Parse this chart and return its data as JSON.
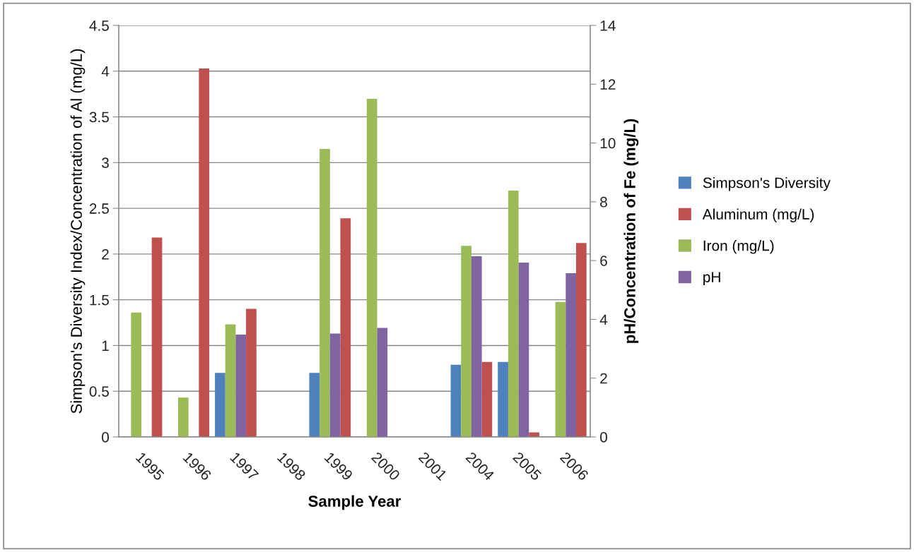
{
  "chart_data": {
    "type": "bar",
    "xlabel": "Sample Year",
    "ylabel": "Simpson's Diversity Index/Concentration of Al (mg/L)",
    "y2label": "pH/Concentration of Fe (mg/L)",
    "categories": [
      "1995",
      "1996",
      "1997",
      "1998",
      "1999",
      "2000",
      "2001",
      "2004",
      "2005",
      "2006"
    ],
    "series": [
      {
        "name": "Simpson's Diversity",
        "color": "#4f81bd",
        "values": [
          null,
          null,
          0.7,
          null,
          0.7,
          null,
          null,
          0.79,
          0.82,
          null
        ]
      },
      {
        "name": "Aluminum (mg/L)",
        "color": "#c0504d",
        "values": [
          2.18,
          4.03,
          1.4,
          null,
          2.39,
          null,
          null,
          0.82,
          0.05,
          2.12
        ]
      },
      {
        "name": "Iron (mg/L)",
        "color": "#9bbb59",
        "axis": "y2",
        "values": [
          4.23,
          1.34,
          3.83,
          null,
          9.8,
          11.5,
          null,
          6.5,
          8.38,
          4.59
        ]
      },
      {
        "name": "pH",
        "color": "#8064a2",
        "axis": "y2",
        "values": [
          null,
          null,
          3.48,
          null,
          3.52,
          3.71,
          null,
          6.15,
          5.93,
          5.57
        ]
      }
    ],
    "ylim": [
      0,
      4.5
    ],
    "yticks": [
      0,
      0.5,
      1,
      1.5,
      2,
      2.5,
      3,
      3.5,
      4,
      4.5
    ],
    "y2lim": [
      0,
      14
    ],
    "y2ticks": [
      0,
      2,
      4,
      6,
      8,
      10,
      12,
      14
    ],
    "grid": "y",
    "legend": "right"
  }
}
